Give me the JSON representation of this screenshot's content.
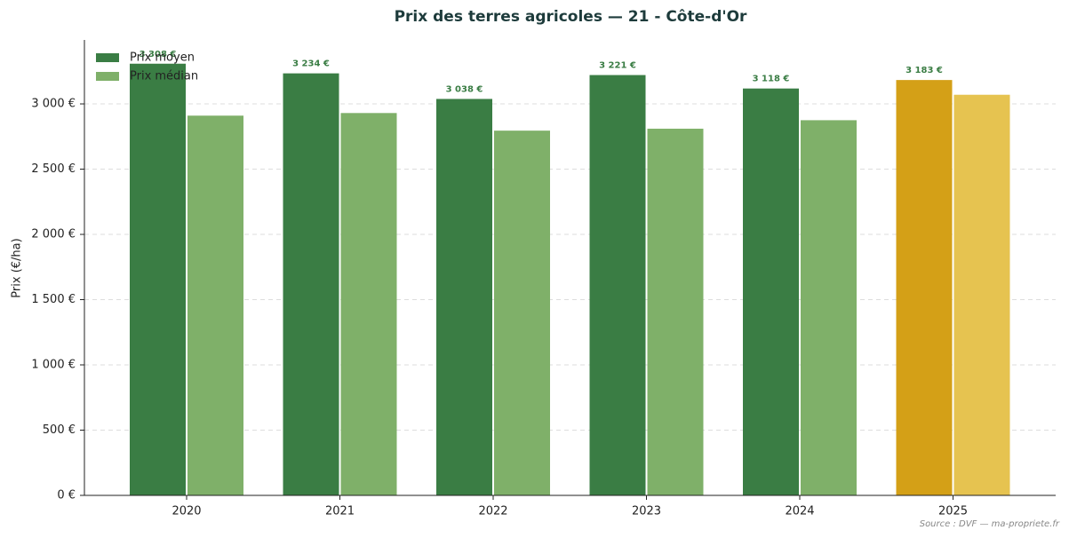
{
  "chart_data": {
    "type": "bar",
    "title": "Prix des terres agricoles — 21 - Côte-d'Or",
    "y_label": "Prix (€/ha)",
    "source": "Source : DVF — ma-propriete.fr",
    "categories": [
      "2020",
      "2021",
      "2022",
      "2023",
      "2024",
      "2025"
    ],
    "series": [
      {
        "name": "Prix moyen",
        "color": "#3a7d44",
        "colors": [
          "#3a7d44",
          "#3a7d44",
          "#3a7d44",
          "#3a7d44",
          "#3a7d44",
          "#d4a017"
        ],
        "values": [
          3308,
          3234,
          3038,
          3221,
          3118,
          3183
        ],
        "value_labels": [
          "3 308 €",
          "3 234 €",
          "3 038 €",
          "3 221 €",
          "3 118 €",
          "3 183 €"
        ]
      },
      {
        "name": "Prix médian",
        "color": "#7fb069",
        "colors": [
          "#7fb069",
          "#7fb069",
          "#7fb069",
          "#7fb069",
          "#7fb069",
          "#e6c350"
        ],
        "values": [
          2910,
          2930,
          2795,
          2810,
          2875,
          3070
        ]
      }
    ],
    "ylim": [
      0,
      3490
    ],
    "yticks": [
      {
        "value": 0,
        "label": "0 €"
      },
      {
        "value": 500,
        "label": "500 €"
      },
      {
        "value": 1000,
        "label": "1 000 €"
      },
      {
        "value": 1500,
        "label": "1 500 €"
      },
      {
        "value": 2000,
        "label": "2 000 €"
      },
      {
        "value": 2500,
        "label": "2 500 €"
      },
      {
        "value": 3000,
        "label": "3 000 €"
      }
    ],
    "grid": true,
    "legend": "upper left"
  }
}
